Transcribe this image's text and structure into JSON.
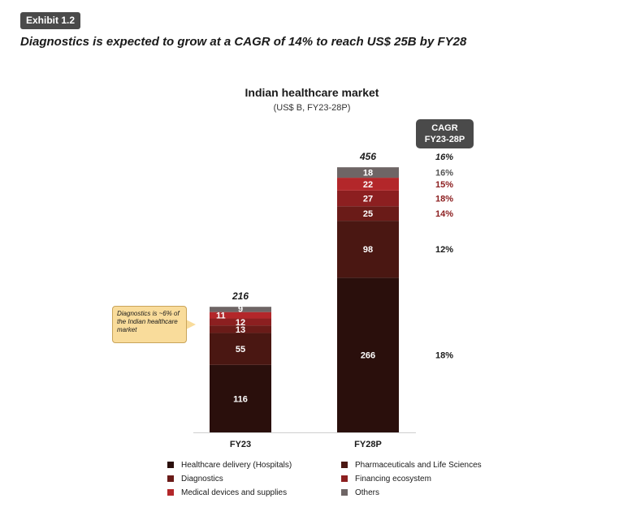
{
  "exhibit": {
    "badge": "Exhibit 1.2"
  },
  "headline": "Diagnostics is expected to grow at a CAGR of 14% to reach US$ 25B by FY28",
  "cagr_header": {
    "line1": "CAGR",
    "line2": "FY23-28P"
  },
  "callout": {
    "text": "Diagnostics is ~6% of the Indian healthcare market"
  },
  "colors": {
    "hospitals": "#2a0f0c",
    "pharma": "#4a1712",
    "diagnostics": "#6a1b18",
    "financing": "#8c1f20",
    "medical_devices": "#b3272a",
    "others": "#6e6565",
    "badge": "#4a4a4a",
    "callout": "#f9dc9b"
  },
  "chart_data": {
    "type": "bar",
    "stacked": true,
    "title": "Indian healthcare market",
    "subtitle": "(US$ B, FY23-28P)",
    "categories": [
      "FY23",
      "FY28P"
    ],
    "totals": [
      "216",
      "456"
    ],
    "series": [
      {
        "name": "Healthcare delivery (Hospitals)",
        "values": [
          116,
          266
        ],
        "labels": [
          "116",
          "266"
        ],
        "cagr": "18%",
        "color_key": "hospitals"
      },
      {
        "name": "Pharmaceuticals and Life Sciences",
        "values": [
          55,
          98
        ],
        "labels": [
          "55",
          "98"
        ],
        "cagr": "12%",
        "color_key": "pharma"
      },
      {
        "name": "Diagnostics",
        "values": [
          13,
          25
        ],
        "labels": [
          "13",
          "25"
        ],
        "cagr": "14%",
        "color_key": "diagnostics"
      },
      {
        "name": "Financing ecosystem",
        "values": [
          12,
          27
        ],
        "labels": [
          "12",
          "27"
        ],
        "cagr": "18%",
        "color_key": "financing"
      },
      {
        "name": "Medical devices and supplies",
        "values": [
          11,
          22
        ],
        "labels": [
          "11",
          "22"
        ],
        "cagr": "15%",
        "color_key": "medical_devices"
      },
      {
        "name": "Others",
        "values": [
          9,
          18
        ],
        "labels": [
          "9",
          "18"
        ],
        "cagr": "16%",
        "color_key": "others"
      }
    ],
    "total_cagr": "16%",
    "legend_position": "bottom",
    "grid": false
  }
}
